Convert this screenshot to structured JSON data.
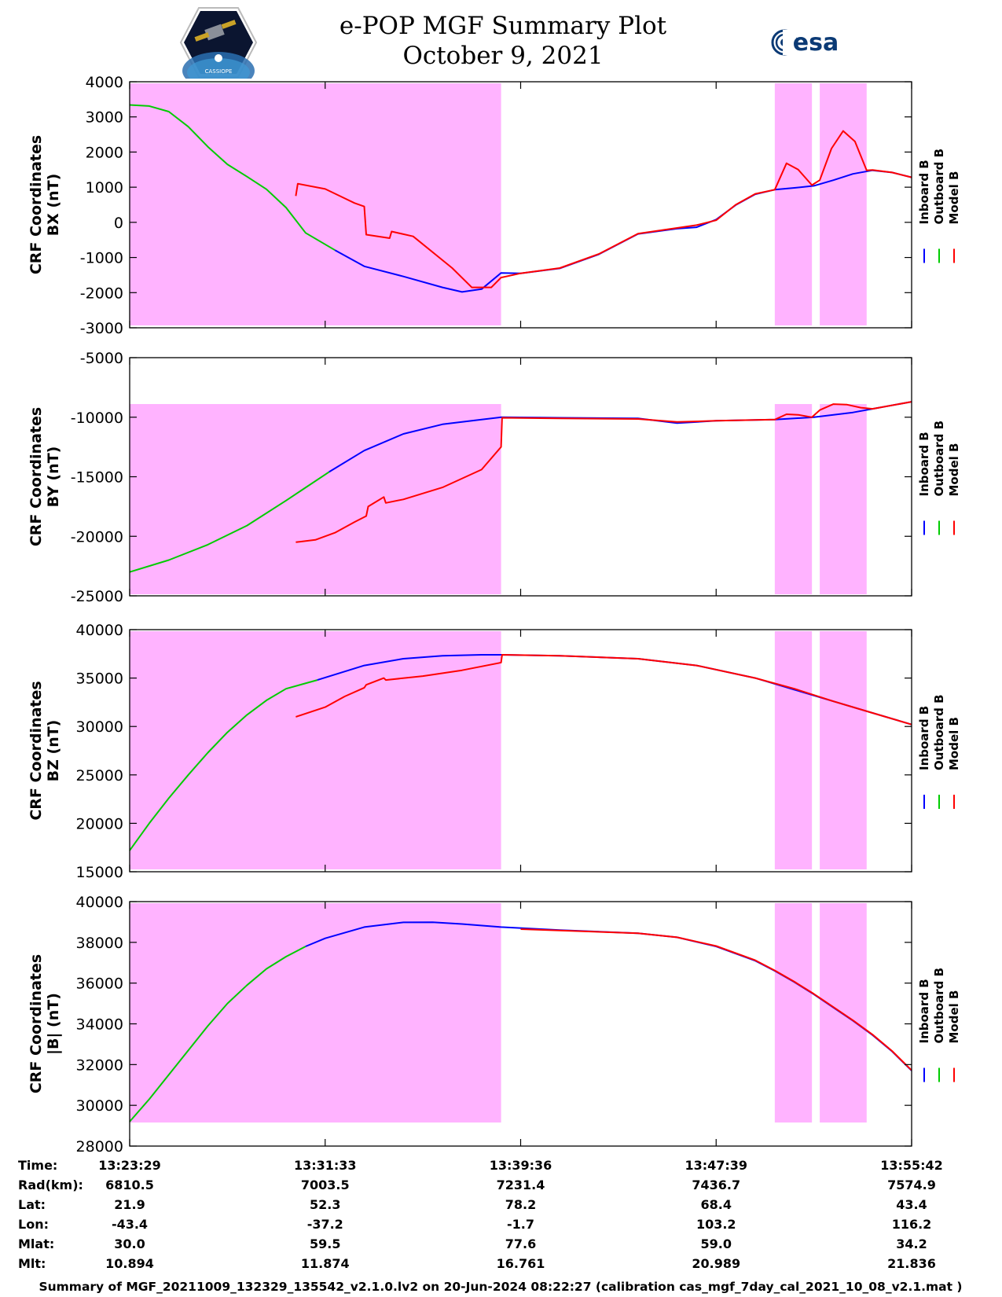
{
  "header": {
    "title_line1": "e-POP MGF Summary Plot",
    "title_line2": "October 9, 2021",
    "logo_left_text": "CASSIOPE",
    "logo_right_text": "esa"
  },
  "colors": {
    "inboard": "#0000ff",
    "outboard": "#00cc00",
    "model": "#ff0000",
    "shade": "#ffb3ff"
  },
  "chart_data": [
    {
      "type": "line",
      "panel": "bx",
      "ylabel_line1": "CRF Coordinates",
      "ylabel_line2": "BX (nT)",
      "ylim": [
        -3000,
        4000
      ],
      "yticks": [
        4000,
        3000,
        2000,
        1000,
        0,
        -1000,
        -2000,
        -3000
      ],
      "legend": [
        "Inboard B",
        "Outboard B",
        "Model B"
      ],
      "shaded_intervals_min": [
        [
          0,
          19.0
        ],
        [
          33.0,
          34.9
        ],
        [
          35.3,
          37.7
        ]
      ],
      "series": [
        {
          "name": "Outboard B",
          "x": [
            0,
            1,
            2,
            3,
            4,
            5,
            6,
            7,
            8,
            9,
            10.5
          ],
          "y": [
            3340,
            3310,
            3150,
            2720,
            2150,
            1650,
            1300,
            940,
            420,
            -300,
            -790
          ]
        },
        {
          "name": "Inboard B",
          "x": [
            10.5,
            12,
            14,
            16,
            17,
            18,
            19,
            20,
            22,
            24,
            26,
            28,
            29,
            30,
            31,
            32,
            33,
            34,
            35,
            36,
            37,
            38,
            39,
            40
          ],
          "y": [
            -790,
            -1250,
            -1540,
            -1850,
            -1980,
            -1900,
            -1440,
            -1450,
            -1310,
            -910,
            -330,
            -180,
            -140,
            80,
            490,
            800,
            930,
            980,
            1040,
            1200,
            1380,
            1480,
            1420,
            1280
          ]
        },
        {
          "name": "Model B",
          "x": [
            8.5,
            8.6,
            10,
            11.5,
            12,
            12.1,
            13.3,
            13.4,
            14.5,
            16.5,
            17.5,
            18.5,
            19,
            20,
            22,
            24,
            26,
            28,
            29,
            30,
            31,
            32,
            33,
            33.6,
            34.2,
            34.9,
            35.3,
            35.9,
            36.5,
            37.1,
            37.7,
            38,
            39,
            40
          ],
          "y": [
            750,
            1100,
            950,
            550,
            450,
            -350,
            -450,
            -260,
            -400,
            -1300,
            -1850,
            -1850,
            -1570,
            -1450,
            -1300,
            -900,
            -320,
            -160,
            -80,
            60,
            500,
            810,
            930,
            1680,
            1500,
            1060,
            1200,
            2100,
            2600,
            2300,
            1480,
            1490,
            1420,
            1280
          ]
        }
      ]
    },
    {
      "type": "line",
      "panel": "by",
      "ylabel_line1": "CRF Coordinates",
      "ylabel_line2": "BY (nT)",
      "ylim": [
        -25000,
        -5000
      ],
      "yticks": [
        -5000,
        -10000,
        -15000,
        -20000,
        -25000
      ],
      "legend": [
        "Inboard B",
        "Outboard B",
        "Model B"
      ],
      "shaded_intervals_min": [
        [
          0,
          19.0
        ],
        [
          33.0,
          34.9
        ],
        [
          35.3,
          37.7
        ]
      ],
      "series": [
        {
          "name": "Outboard B",
          "x": [
            0,
            2,
            4,
            6,
            8,
            10.2
          ],
          "y": [
            -23000,
            -22000,
            -20700,
            -19100,
            -17000,
            -14600
          ]
        },
        {
          "name": "Inboard B",
          "x": [
            10.2,
            12,
            14,
            16,
            18,
            19,
            22,
            26,
            28,
            30,
            33,
            35,
            37,
            38,
            40
          ],
          "y": [
            -14600,
            -12800,
            -11400,
            -10600,
            -10200,
            -10000,
            -10050,
            -10100,
            -10500,
            -10300,
            -10200,
            -10000,
            -9600,
            -9300,
            -8700
          ]
        },
        {
          "name": "Model B",
          "x": [
            8.5,
            9.5,
            10.5,
            11.5,
            12.1,
            12.2,
            13,
            13.1,
            14,
            16,
            18,
            19,
            19.05,
            22,
            26,
            28,
            30,
            33,
            33.6,
            34.2,
            34.9,
            35.3,
            36,
            36.7,
            37.4,
            38,
            40
          ],
          "y": [
            -20500,
            -20300,
            -19700,
            -18800,
            -18300,
            -17500,
            -16700,
            -17200,
            -16900,
            -15900,
            -14400,
            -12500,
            -10050,
            -10100,
            -10150,
            -10400,
            -10300,
            -10200,
            -9750,
            -9800,
            -10000,
            -9400,
            -8900,
            -8950,
            -9200,
            -9300,
            -8700
          ]
        }
      ]
    },
    {
      "type": "line",
      "panel": "bz",
      "ylabel_line1": "CRF Coordinates",
      "ylabel_line2": "BZ (nT)",
      "ylim": [
        15000,
        40000
      ],
      "yticks": [
        40000,
        35000,
        30000,
        25000,
        20000,
        15000
      ],
      "legend": [
        "Inboard B",
        "Outboard B",
        "Model B"
      ],
      "shaded_intervals_min": [
        [
          0,
          19.0
        ],
        [
          33.0,
          34.9
        ],
        [
          35.3,
          37.7
        ]
      ],
      "series": [
        {
          "name": "Outboard B",
          "x": [
            0,
            1,
            2,
            3,
            4,
            5,
            6,
            7,
            8,
            9.6
          ],
          "y": [
            17200,
            20000,
            22600,
            25000,
            27300,
            29400,
            31200,
            32700,
            33900,
            34800
          ]
        },
        {
          "name": "Inboard B",
          "x": [
            9.6,
            12,
            14,
            16,
            18,
            19,
            22,
            26,
            29,
            32,
            34,
            36,
            38,
            40
          ],
          "y": [
            34800,
            36300,
            37000,
            37300,
            37400,
            37400,
            37300,
            37000,
            36300,
            35000,
            33800,
            32600,
            31400,
            30200
          ]
        },
        {
          "name": "Model B",
          "x": [
            8.5,
            10,
            11,
            12,
            12.1,
            13,
            13.1,
            15,
            17,
            19,
            19.05,
            22,
            26,
            29,
            32,
            34,
            36,
            38,
            40
          ],
          "y": [
            31000,
            32000,
            33100,
            34000,
            34300,
            35000,
            34800,
            35200,
            35800,
            36600,
            37400,
            37300,
            37000,
            36300,
            35000,
            33900,
            32600,
            31400,
            30200
          ]
        }
      ]
    },
    {
      "type": "line",
      "panel": "bmag",
      "ylabel_line1": "CRF Coordinates",
      "ylabel_line2": "|B| (nT)",
      "ylim": [
        28000,
        40000
      ],
      "yticks": [
        40000,
        38000,
        36000,
        34000,
        32000,
        30000,
        28000
      ],
      "legend": [
        "Inboard B",
        "Outboard B",
        "Model B"
      ],
      "shaded_intervals_min": [
        [
          0,
          19.0
        ],
        [
          33.0,
          34.9
        ],
        [
          35.3,
          37.7
        ]
      ],
      "series": [
        {
          "name": "Outboard B",
          "x": [
            0,
            1,
            2,
            3,
            4,
            5,
            6,
            7,
            8,
            9
          ],
          "y": [
            29200,
            30300,
            31500,
            32700,
            33900,
            35000,
            35900,
            36700,
            37300,
            37800
          ]
        },
        {
          "name": "Inboard B",
          "x": [
            9,
            10,
            12,
            14,
            15.5,
            17,
            19,
            22,
            26,
            28,
            30,
            32,
            33,
            34,
            35,
            36,
            37,
            38,
            39,
            40
          ],
          "y": [
            37800,
            38200,
            38750,
            38980,
            38990,
            38900,
            38750,
            38600,
            38450,
            38250,
            37800,
            37100,
            36600,
            36050,
            35450,
            34800,
            34150,
            33450,
            32650,
            31700
          ]
        },
        {
          "name": "Model B",
          "x": [
            20,
            26,
            28,
            30,
            32,
            33,
            34,
            35,
            36,
            37,
            38,
            39,
            40
          ],
          "y": [
            38650,
            38450,
            38250,
            37820,
            37120,
            36620,
            36070,
            35470,
            34820,
            34170,
            33470,
            32670,
            31720
          ]
        }
      ]
    }
  ],
  "x_axis": {
    "ticks_min": [
      0,
      10,
      20,
      30,
      40
    ],
    "time_labels": [
      "13:23:29",
      "13:31:33",
      "13:39:36",
      "13:47:39",
      "13:55:42"
    ]
  },
  "info_table": {
    "rows": [
      {
        "label": "Time:",
        "values": [
          "13:23:29",
          "13:31:33",
          "13:39:36",
          "13:47:39",
          "13:55:42"
        ]
      },
      {
        "label": "Rad(km):",
        "values": [
          "6810.5",
          "7003.5",
          "7231.4",
          "7436.7",
          "7574.9"
        ]
      },
      {
        "label": "Lat:",
        "values": [
          "21.9",
          "52.3",
          "78.2",
          "68.4",
          "43.4"
        ]
      },
      {
        "label": "Lon:",
        "values": [
          "-43.4",
          "-37.2",
          "-1.7",
          "103.2",
          "116.2"
        ]
      },
      {
        "label": "Mlat:",
        "values": [
          "30.0",
          "59.5",
          "77.6",
          "59.0",
          "34.2"
        ]
      },
      {
        "label": "Mlt:",
        "values": [
          "10.894",
          "11.874",
          "16.761",
          "20.989",
          "21.836"
        ]
      }
    ]
  },
  "footer": {
    "text": "Summary of MGF_20211009_132329_135542_v2.1.0.lv2 on 20-Jun-2024 08:22:27 (calibration cas_mgf_7day_cal_2021_10_08_v2.1.mat )"
  }
}
